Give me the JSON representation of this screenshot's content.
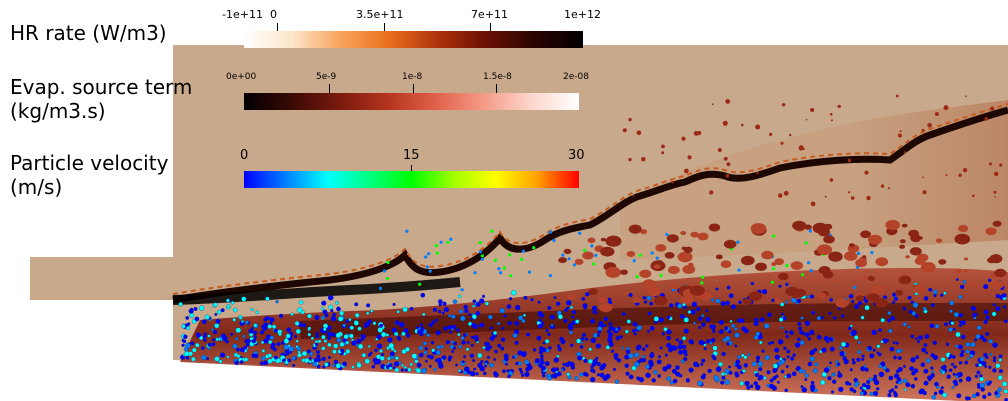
{
  "legends": {
    "hr_rate": {
      "title": "HR rate (W/m3)",
      "ticks": [
        "-1e+11",
        "0",
        "3.5e+11",
        "7e+11",
        "1e+12"
      ],
      "colormap": [
        "#ffffff",
        "#fde5c8",
        "#f9a35c",
        "#e86f1c",
        "#b0320c",
        "#6a0f04",
        "#2a0402",
        "#000000"
      ]
    },
    "evap_source": {
      "title_line1": "Evap. source term",
      "title_line2": "(kg/m3.s)",
      "ticks": [
        "0e+00",
        "5e-9",
        "1e-8",
        "1.5e-8",
        "2e-08"
      ],
      "colormap": [
        "#000000",
        "#3a0a04",
        "#7a1a0e",
        "#b5341e",
        "#e0604a",
        "#f49a86",
        "#fcd6cc",
        "#ffffff"
      ]
    },
    "particle_velocity": {
      "title_line1": "Particle velocity",
      "title_line2": "(m/s)",
      "ticks": [
        "0",
        "15",
        "30"
      ],
      "colormap": [
        "#0000ff",
        "#0080ff",
        "#00ffff",
        "#00ff80",
        "#00ff00",
        "#a0ff00",
        "#ffff00",
        "#ffa000",
        "#ff0000"
      ]
    }
  },
  "field": {
    "background_color": "#c9a98b"
  }
}
